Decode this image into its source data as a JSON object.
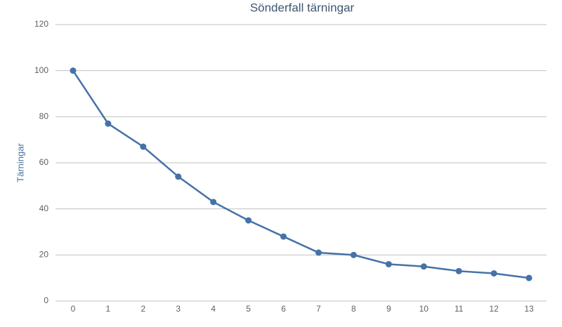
{
  "chart_data": {
    "type": "line",
    "title": "Sönderfall tärningar",
    "y_label": "Tärningar",
    "categories": [
      "0",
      "1",
      "2",
      "3",
      "4",
      "5",
      "6",
      "7",
      "8",
      "9",
      "10",
      "11",
      "12",
      "13"
    ],
    "series": [
      {
        "name": "Tärningar",
        "color": "#4572a7",
        "values": [
          100,
          77,
          67,
          54,
          43,
          35,
          28,
          21,
          20,
          16,
          15,
          13,
          12,
          10
        ]
      }
    ],
    "ylim": [
      0,
      120
    ],
    "yticks": [
      0,
      20,
      40,
      60,
      80,
      100,
      120
    ],
    "grid": true
  }
}
